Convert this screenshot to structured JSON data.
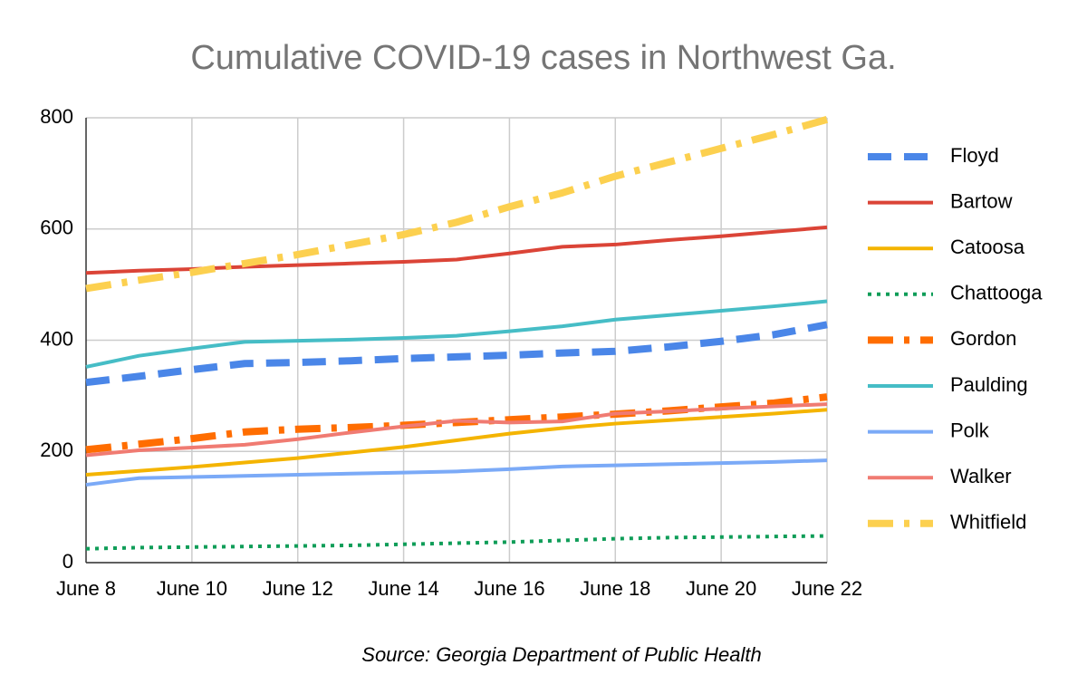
{
  "chart_data": {
    "type": "line",
    "title": "Cumulative COVID-19 cases in Northwest Ga.",
    "source": "Source: Georgia Department of Public Health",
    "categories": [
      "June 8",
      null,
      "June 10",
      null,
      "June 12",
      null,
      "June 14",
      null,
      "June 16",
      null,
      "June 18",
      null,
      "June 20",
      null,
      "June 22"
    ],
    "ylim": [
      0,
      800
    ],
    "yticks": [
      0,
      200,
      400,
      600,
      800
    ],
    "grid": true,
    "legend": "right",
    "series": [
      {
        "name": "Floyd",
        "color": "#4a86e8",
        "style": "dashed",
        "values": [
          324,
          335,
          347,
          358,
          360,
          363,
          367,
          370,
          373,
          377,
          380,
          388,
          398,
          410,
          428
        ]
      },
      {
        "name": "Bartow",
        "color": "#db4437",
        "style": "solid",
        "values": [
          521,
          525,
          528,
          532,
          535,
          538,
          541,
          545,
          556,
          568,
          572,
          580,
          587,
          595,
          603
        ]
      },
      {
        "name": "Catoosa",
        "color": "#f4b400",
        "style": "solid",
        "values": [
          158,
          165,
          172,
          180,
          188,
          198,
          208,
          220,
          232,
          242,
          250,
          256,
          262,
          268,
          275
        ]
      },
      {
        "name": "Chattooga",
        "color": "#0f9d58",
        "style": "dotted",
        "values": [
          25,
          27,
          28,
          29,
          30,
          31,
          33,
          35,
          37,
          40,
          43,
          45,
          46,
          47,
          48
        ]
      },
      {
        "name": "Gordon",
        "color": "#ff6d00",
        "style": "dashdot",
        "values": [
          203,
          213,
          223,
          235,
          240,
          243,
          247,
          252,
          257,
          262,
          267,
          273,
          280,
          287,
          298
        ]
      },
      {
        "name": "Paulding",
        "color": "#46bdc6",
        "style": "solid",
        "values": [
          352,
          372,
          385,
          397,
          399,
          401,
          404,
          408,
          416,
          425,
          437,
          445,
          453,
          461,
          470
        ]
      },
      {
        "name": "Polk",
        "color": "#7baaf7",
        "style": "solid",
        "values": [
          140,
          152,
          154,
          156,
          158,
          160,
          162,
          164,
          168,
          173,
          175,
          177,
          179,
          181,
          184
        ]
      },
      {
        "name": "Walker",
        "color": "#f07b72",
        "style": "solid",
        "values": [
          193,
          202,
          207,
          212,
          222,
          234,
          245,
          255,
          252,
          254,
          268,
          272,
          277,
          281,
          285
        ]
      },
      {
        "name": "Whitfield",
        "color": "#fcd04f",
        "style": "dashdot",
        "values": [
          493,
          508,
          522,
          538,
          554,
          572,
          590,
          612,
          640,
          665,
          695,
          720,
          745,
          770,
          797
        ]
      }
    ]
  }
}
